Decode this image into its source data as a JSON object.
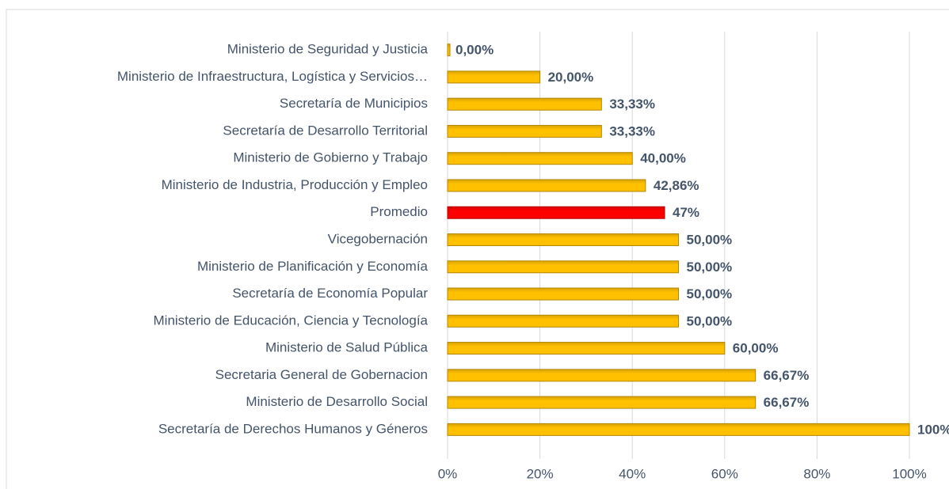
{
  "chart_data": {
    "type": "hbar",
    "categories": [
      "Ministerio de Seguridad y Justicia",
      "Ministerio de Infraestructura, Logística y Servicios…",
      "Secretaría de Municipios",
      "Secretaría de Desarrollo Territorial",
      "Ministerio de Gobierno y Trabajo",
      "Ministerio de Industria, Producción y Empleo",
      "Promedio",
      "Vicegobernación",
      "Ministerio de Planificación y Economía",
      "Secretaría de Economía Popular",
      "Ministerio de Educación, Ciencia y Tecnología",
      "Ministerio de Salud Pública",
      "Secretaria General de Gobernacion",
      "Ministerio de Desarrollo Social",
      "Secretaría de Derechos Humanos y Géneros"
    ],
    "values": [
      0,
      20,
      33.33,
      33.33,
      40,
      42.86,
      47,
      50,
      50,
      50,
      50,
      60,
      66.67,
      66.67,
      100
    ],
    "value_labels": [
      "0,00%",
      "20,00%",
      "33,33%",
      "33,33%",
      "40,00%",
      "42,86%",
      "47%",
      "50,00%",
      "50,00%",
      "50,00%",
      "50,00%",
      "60,00%",
      "66,67%",
      "66,67%",
      "100%"
    ],
    "colors": [
      "#ffc000",
      "#ffc000",
      "#ffc000",
      "#ffc000",
      "#ffc000",
      "#ffc000",
      "#ff0000",
      "#ffc000",
      "#ffc000",
      "#ffc000",
      "#ffc000",
      "#ffc000",
      "#ffc000",
      "#ffc000",
      "#ffc000"
    ],
    "xlim": [
      0,
      100
    ],
    "xticks": [
      {
        "value": 0,
        "label": "0%"
      },
      {
        "value": 20,
        "label": "20%"
      },
      {
        "value": 40,
        "label": "40%"
      },
      {
        "value": 60,
        "label": "60%"
      },
      {
        "value": 80,
        "label": "80%"
      },
      {
        "value": 100,
        "label": "100%"
      }
    ],
    "grid": true
  }
}
